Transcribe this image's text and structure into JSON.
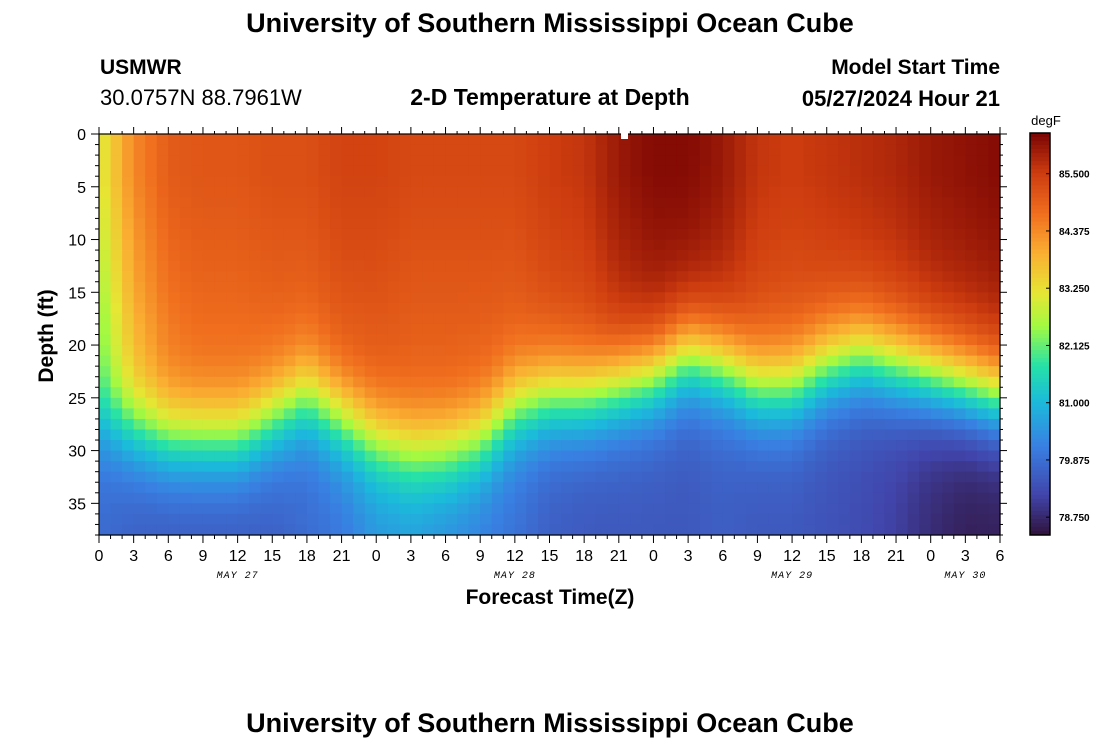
{
  "header": {
    "title": "University of Southern Mississippi Ocean Cube",
    "station": "USMWR",
    "coordinates": "30.0757N  88.7961W",
    "subtitle": "2-D Temperature at Depth",
    "model_start_label": "Model Start Time",
    "model_start_value": "05/27/2024 Hour 21"
  },
  "footer": {
    "title": "University of Southern Mississippi Ocean Cube"
  },
  "chart_data": {
    "type": "heatmap",
    "title": "2-D Temperature at Depth",
    "xlabel": "Forecast Time(Z)",
    "ylabel": "Depth (ft)",
    "x_range_hours_since_may27_00z": [
      0,
      78
    ],
    "x_tick_hours": [
      0,
      3,
      6,
      9,
      12,
      15,
      18,
      21,
      24,
      27,
      30,
      33,
      36,
      39,
      42,
      45,
      48,
      51,
      54,
      57,
      60,
      63,
      66,
      69,
      72,
      75,
      78
    ],
    "x_tick_labels": [
      "0",
      "3",
      "6",
      "9",
      "12",
      "15",
      "18",
      "21",
      "0",
      "3",
      "6",
      "9",
      "12",
      "15",
      "18",
      "21",
      "0",
      "3",
      "6",
      "9",
      "12",
      "15",
      "18",
      "21",
      "0",
      "3",
      "6"
    ],
    "date_labels": [
      {
        "text": "MAY 27",
        "hour": 12
      },
      {
        "text": "MAY 28",
        "hour": 36
      },
      {
        "text": "MAY 29",
        "hour": 60
      },
      {
        "text": "MAY 30",
        "hour": 75
      }
    ],
    "y_range_ft": [
      0,
      38
    ],
    "y_tick_values": [
      0,
      5,
      10,
      15,
      20,
      25,
      30,
      35
    ],
    "y_tick_labels": [
      "0",
      "5",
      "10",
      "15",
      "20",
      "25",
      "30",
      "35"
    ],
    "colorbar": {
      "unit": "degF",
      "range": [
        78.4,
        86.3
      ],
      "tick_values": [
        78.75,
        79.875,
        81.0,
        82.125,
        83.25,
        84.375,
        85.5
      ],
      "tick_labels": [
        "78.750",
        "79.875",
        "81.000",
        "82.125",
        "83.250",
        "84.375",
        "85.500"
      ]
    },
    "field_profile": {
      "description": "Approximate temperature by depth: warm surface layer over cool bottom layer, thermocline depth varies with time",
      "hours": [
        0,
        3,
        6,
        9,
        12,
        15,
        18,
        21,
        24,
        27,
        30,
        33,
        36,
        39,
        42,
        45,
        48,
        51,
        54,
        57,
        60,
        63,
        66,
        69,
        72,
        75,
        78
      ],
      "thermocline_depth_ft": [
        27,
        28,
        29,
        29,
        29,
        27,
        25,
        27,
        29,
        30,
        30,
        29,
        26,
        25,
        25,
        24,
        23,
        21,
        22,
        24,
        24,
        22,
        21,
        22,
        23,
        24,
        25
      ],
      "surface_temp_degF": [
        83.0,
        84.4,
        85.0,
        85.1,
        85.1,
        85.2,
        85.2,
        85.4,
        85.4,
        85.3,
        85.3,
        85.3,
        85.3,
        85.5,
        85.6,
        86.0,
        86.2,
        86.2,
        86.0,
        85.6,
        85.5,
        85.6,
        85.7,
        85.8,
        86.0,
        86.1,
        86.2
      ],
      "bottom_temp_degF": [
        79.8,
        79.6,
        79.5,
        79.5,
        79.5,
        79.6,
        79.8,
        80.0,
        80.4,
        80.5,
        80.3,
        80.1,
        79.9,
        79.6,
        79.5,
        79.5,
        79.5,
        79.5,
        79.6,
        79.5,
        79.5,
        79.4,
        79.3,
        79.1,
        78.8,
        78.6,
        78.6
      ]
    }
  }
}
